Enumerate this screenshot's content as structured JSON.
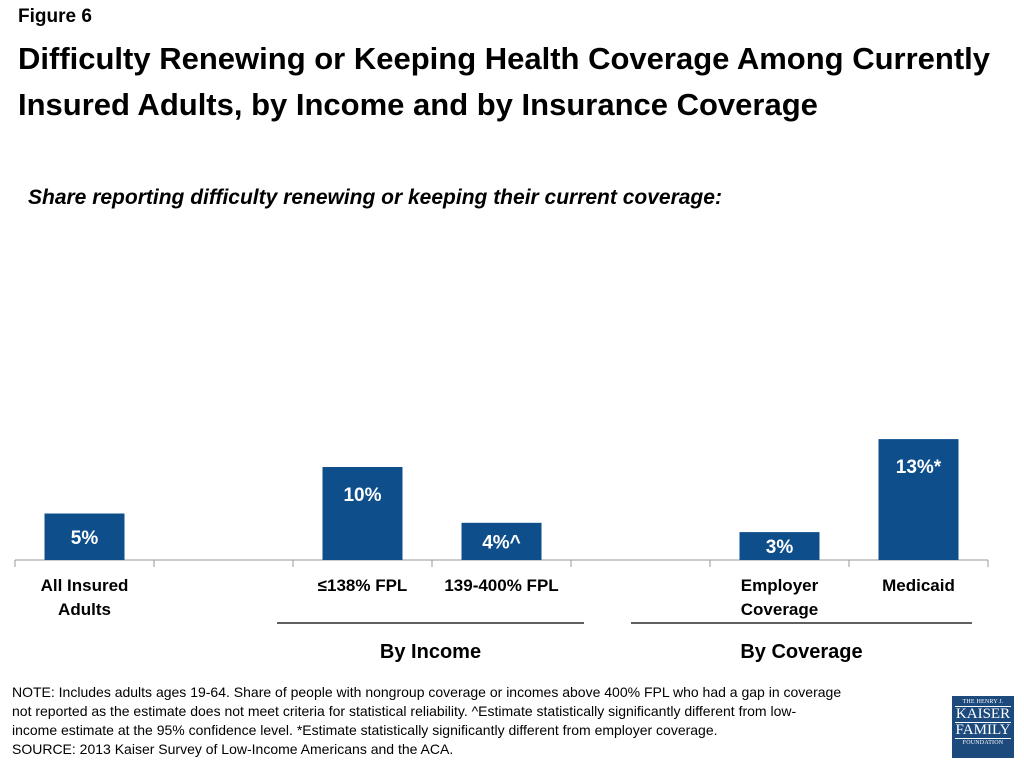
{
  "figure_label": "Figure 6",
  "title": "Difficulty Renewing or Keeping Health Coverage Among Currently Insured Adults, by Income and by Insurance Coverage",
  "chart_data": {
    "type": "bar",
    "title": "Share reporting difficulty renewing or keeping their current coverage:",
    "categories": [
      [
        "All Insured",
        "Adults"
      ],
      [
        "≤138% FPL"
      ],
      [
        "139-400% FPL"
      ],
      [
        "Employer",
        "Coverage"
      ],
      [
        "Medicaid"
      ]
    ],
    "values": [
      5,
      10,
      4,
      3,
      13
    ],
    "data_labels": [
      "5%",
      "10%",
      "4%^",
      "3%",
      "13%*"
    ],
    "groups": [
      {
        "label": "By Income",
        "categories": [
          1,
          2
        ]
      },
      {
        "label": "By Coverage",
        "categories": [
          3,
          4
        ]
      }
    ],
    "ylim": [
      0,
      20
    ],
    "grid": false,
    "bar_color": "#0e4f8b"
  },
  "notes": [
    "NOTE: Includes adults ages 19-64. Share of people with  nongroup coverage or incomes above 400% FPL who had a gap in coverage",
    "not reported as the estimate does not meet criteria for statistical reliability. ^Estimate statistically significantly different from low-",
    "income estimate  at the 95% confidence level. *Estimate statistically significantly different from employer coverage.",
    "SOURCE: 2013 Kaiser Survey of Low-Income Americans and the ACA."
  ],
  "logo": {
    "line1": "THE HENRY J.",
    "line2": "KAISER",
    "line3": "FAMILY",
    "line4": "FOUNDATION"
  }
}
